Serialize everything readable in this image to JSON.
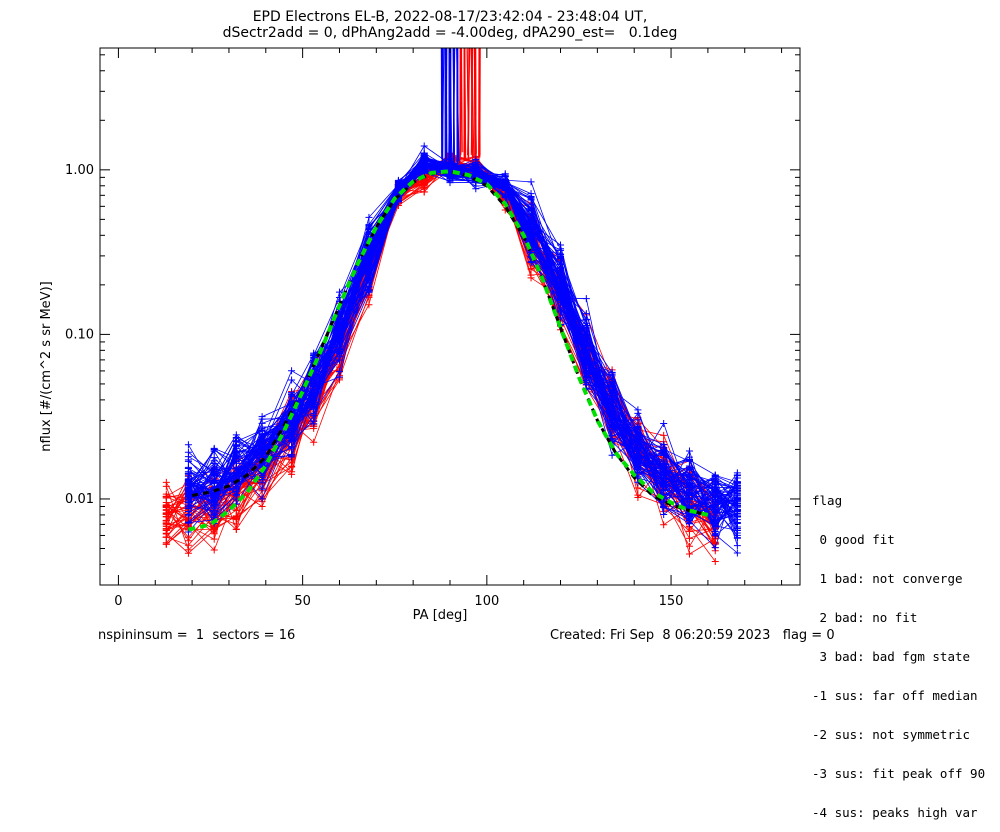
{
  "chart_data": {
    "type": "line",
    "title": "EPD Electrons EL-B, 2022-08-17/23:42:04 - 23:48:04 UT,",
    "subtitle": "dSectr2add = 0, dPhAng2add = -4.00deg, dPA290_est=   0.1deg",
    "xlabel": "PA [deg]",
    "ylabel": "nflux [#/(cm^2 s sr MeV)]",
    "xlim": [
      -5,
      185
    ],
    "ylim": [
      0.003,
      5.5
    ],
    "yscale": "log",
    "x_ticks": [
      "0",
      "50",
      "100",
      "150"
    ],
    "y_ticks": [
      "0.01",
      "0.10",
      "1.00"
    ],
    "grid": false,
    "legend_position": "none",
    "colors": {
      "red_sectors": "#ff0000",
      "blue_sectors": "#0000ff",
      "fit": "#00e000",
      "median": "#000000"
    },
    "series": [
      {
        "color": "red",
        "x": [
          13,
          19,
          26,
          32,
          39,
          47,
          53,
          60,
          68,
          76,
          83,
          90,
          97,
          105,
          112,
          120,
          127,
          134,
          141,
          148,
          155,
          162
        ],
        "y": [
          0.008,
          0.0085,
          0.009,
          0.011,
          0.015,
          0.024,
          0.04,
          0.08,
          0.25,
          0.7,
          0.9,
          1.1,
          1.0,
          0.7,
          0.35,
          0.17,
          0.07,
          0.035,
          0.02,
          0.013,
          0.009,
          0.0075
        ]
      },
      {
        "color": "blue",
        "x": [
          19,
          26,
          32,
          39,
          47,
          53,
          60,
          68,
          76,
          83,
          90,
          97,
          105,
          112,
          120,
          127,
          134,
          141,
          148,
          155,
          162,
          168
        ],
        "y": [
          0.011,
          0.012,
          0.014,
          0.019,
          0.03,
          0.05,
          0.11,
          0.3,
          0.75,
          1.1,
          1.0,
          0.95,
          0.8,
          0.45,
          0.2,
          0.08,
          0.035,
          0.02,
          0.014,
          0.011,
          0.0095,
          0.009
        ]
      }
    ],
    "fit_curve": {
      "color": "green",
      "x": [
        19,
        25,
        30,
        35,
        40,
        45,
        50,
        55,
        60,
        65,
        70,
        75,
        80,
        85,
        90,
        95,
        100,
        105,
        110,
        115,
        120,
        125,
        130,
        135,
        140,
        145,
        150,
        155,
        160
      ],
      "y": [
        0.0065,
        0.007,
        0.0085,
        0.011,
        0.016,
        0.026,
        0.045,
        0.08,
        0.15,
        0.27,
        0.45,
        0.67,
        0.85,
        0.96,
        0.98,
        0.93,
        0.82,
        0.62,
        0.4,
        0.22,
        0.11,
        0.055,
        0.03,
        0.019,
        0.014,
        0.011,
        0.0095,
        0.0085,
        0.008
      ]
    },
    "median_curve": {
      "color": "black",
      "x": [
        20,
        25,
        30,
        35,
        40,
        45,
        50,
        55,
        60,
        65,
        70,
        75,
        80,
        85,
        90,
        95,
        100,
        105,
        110,
        115,
        120,
        125,
        130,
        135,
        140,
        145,
        150,
        155,
        160
      ],
      "y": [
        0.0105,
        0.011,
        0.012,
        0.014,
        0.018,
        0.028,
        0.046,
        0.082,
        0.15,
        0.27,
        0.45,
        0.66,
        0.84,
        0.95,
        0.97,
        0.92,
        0.8,
        0.6,
        0.39,
        0.22,
        0.11,
        0.055,
        0.03,
        0.019,
        0.0135,
        0.0105,
        0.0092,
        0.0085,
        0.008
      ]
    }
  },
  "legend_text": [
    "flag",
    " 0 good fit",
    " 1 bad: not converge",
    " 2 bad: no fit",
    " 3 bad: bad fgm state",
    "-1 sus: far off median",
    "-2 sus: not symmetric",
    "-3 sus: fit peak off 90",
    "-4 sus: peaks high var"
  ],
  "footer": {
    "left": "nspininsum =  1  sectors = 16",
    "right": "Created: Fri Sep  8 06:20:59 2023   flag = 0"
  }
}
